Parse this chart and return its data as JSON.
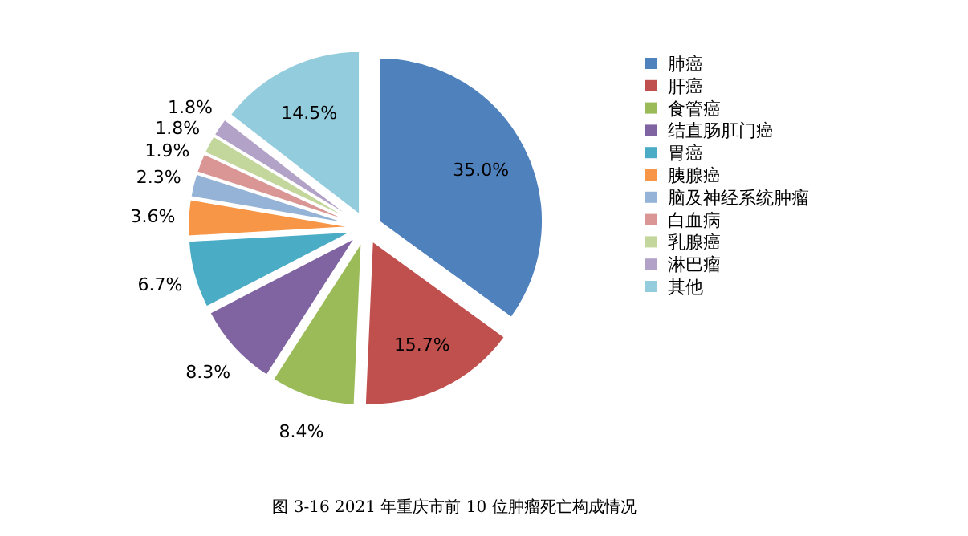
{
  "chart_data": {
    "type": "pie",
    "title": "图 3-16 2021 年重庆市前 10 位肿瘤死亡构成情况",
    "categories": [
      "肺癌",
      "肝癌",
      "食管癌",
      "结直肠肛门癌",
      "胃癌",
      "胰腺癌",
      "脑及神经系统肿瘤",
      "白血病",
      "乳腺癌",
      "淋巴瘤",
      "其他"
    ],
    "values": [
      35.0,
      15.7,
      8.4,
      8.3,
      6.7,
      3.6,
      2.3,
      1.9,
      1.8,
      1.8,
      14.5
    ],
    "value_labels": [
      "35.0%",
      "15.7%",
      "8.4%",
      "8.3%",
      "6.7%",
      "3.6%",
      "2.3%",
      "1.9%",
      "1.8%",
      "1.8%",
      "14.5%"
    ],
    "colors": [
      "#4f81bd",
      "#c0504d",
      "#9bbb59",
      "#8064a2",
      "#4bacc6",
      "#f79646",
      "#95b3d7",
      "#d99694",
      "#c3d69b",
      "#b3a2c7",
      "#93cddd"
    ],
    "legend": "right"
  }
}
